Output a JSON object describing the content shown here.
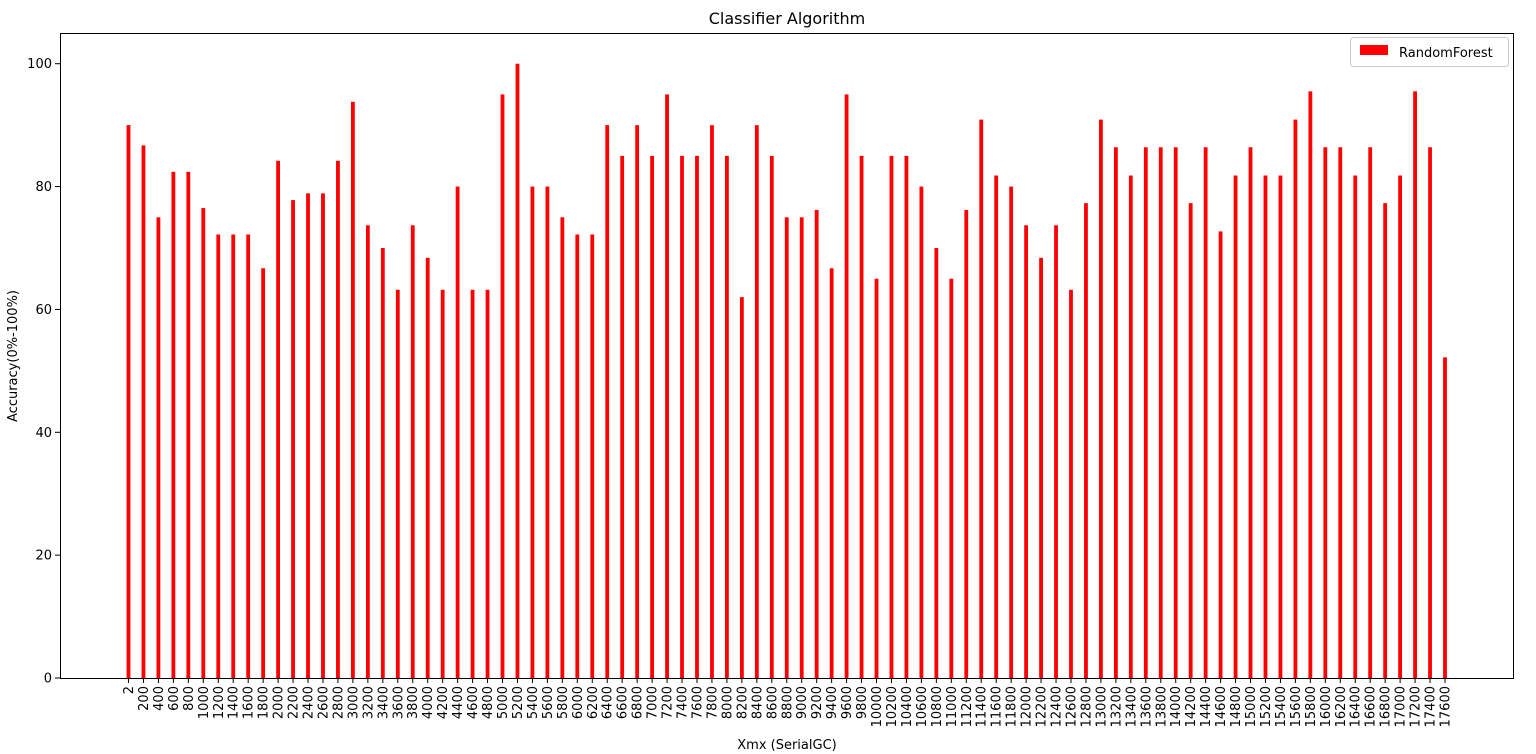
{
  "chart_data": {
    "type": "bar",
    "title": "Classifier Algorithm",
    "xlabel": "Xmx (SerialGC)",
    "ylabel": "Accuracy(0%-100%)",
    "ylim": [
      0,
      105
    ],
    "yticks": [
      0,
      20,
      40,
      60,
      80,
      100
    ],
    "legend_position": "top-right",
    "grid": false,
    "categories": [
      "2",
      "200",
      "400",
      "600",
      "800",
      "1000",
      "1200",
      "1400",
      "1600",
      "1800",
      "2000",
      "2200",
      "2400",
      "2600",
      "2800",
      "3000",
      "3200",
      "3400",
      "3600",
      "3800",
      "4000",
      "4200",
      "4400",
      "4600",
      "4800",
      "5000",
      "5200",
      "5400",
      "5600",
      "5800",
      "6000",
      "6200",
      "6400",
      "6600",
      "6800",
      "7000",
      "7200",
      "7400",
      "7600",
      "7800",
      "8000",
      "8200",
      "8400",
      "8600",
      "8800",
      "9000",
      "9200",
      "9400",
      "9600",
      "9800",
      "10000",
      "10200",
      "10400",
      "10600",
      "10800",
      "11000",
      "11200",
      "11400",
      "11600",
      "11800",
      "12000",
      "12200",
      "12400",
      "12600",
      "12800",
      "13000",
      "13200",
      "13400",
      "13600",
      "13800",
      "14000",
      "14200",
      "14400",
      "14600",
      "14800",
      "15000",
      "15200",
      "15400",
      "15600",
      "15800",
      "16000",
      "16200",
      "16400",
      "16600",
      "16800",
      "17000",
      "17200",
      "17400",
      "17600"
    ],
    "series": [
      {
        "name": "RandomForest",
        "color": "#ff0000",
        "values": [
          90,
          86.7,
          75,
          82.4,
          82.4,
          76.5,
          72.2,
          72.2,
          72.2,
          66.7,
          84.2,
          77.8,
          78.9,
          78.9,
          84.2,
          93.8,
          73.7,
          70,
          63.2,
          73.7,
          68.4,
          63.2,
          80,
          63.2,
          63.2,
          95,
          100,
          80,
          80,
          75,
          72.2,
          72.2,
          90,
          85,
          90,
          85,
          95,
          85,
          85,
          90,
          85,
          62,
          90,
          85,
          75,
          75,
          76.2,
          66.7,
          95,
          85,
          65,
          85,
          85,
          80,
          70,
          65,
          76.2,
          90.9,
          81.8,
          80,
          73.7,
          68.4,
          73.7,
          63.2,
          77.3,
          90.9,
          86.4,
          81.8,
          86.4,
          86.4,
          86.4,
          77.3,
          86.4,
          72.7,
          81.8,
          86.4,
          81.8,
          81.8,
          90.9,
          95.5,
          86.4,
          86.4,
          81.8,
          86.4,
          77.3,
          81.8,
          95.5,
          86.4,
          52.2
        ]
      }
    ]
  }
}
